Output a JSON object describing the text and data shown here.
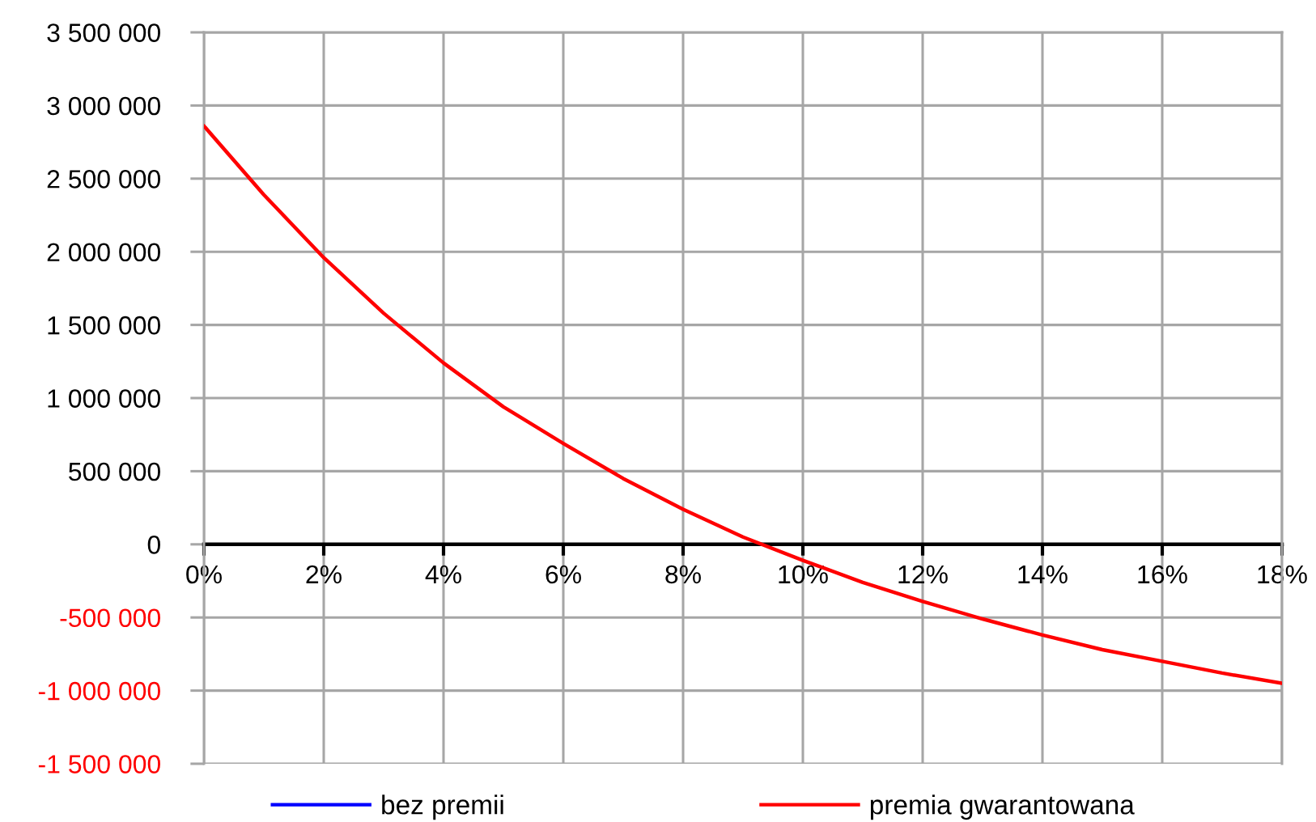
{
  "chart_data": {
    "type": "line",
    "x": [
      0,
      1,
      2,
      3,
      4,
      5,
      6,
      7,
      8,
      9,
      10,
      11,
      12,
      13,
      14,
      15,
      16,
      17,
      18
    ],
    "series": [
      {
        "name": "bez premii",
        "color": "#0000ff",
        "values": [
          null,
          null,
          null,
          null,
          null,
          null,
          null,
          null,
          null,
          null,
          null,
          null,
          null,
          null,
          null,
          null,
          null,
          null,
          null
        ]
      },
      {
        "name": "premia gwarantowana",
        "color": "#ff0000",
        "values": [
          2860000,
          2390000,
          1960000,
          1580000,
          1240000,
          940000,
          690000,
          450000,
          240000,
          50000,
          -110000,
          -260000,
          -390000,
          -510000,
          -620000,
          -720000,
          -800000,
          -880000,
          -950000
        ]
      }
    ],
    "xlim": [
      0,
      18
    ],
    "xticks": [
      {
        "value": 0,
        "label": "0%"
      },
      {
        "value": 2,
        "label": "2%"
      },
      {
        "value": 4,
        "label": "4%"
      },
      {
        "value": 6,
        "label": "6%"
      },
      {
        "value": 8,
        "label": "8%"
      },
      {
        "value": 10,
        "label": "10%"
      },
      {
        "value": 12,
        "label": "12%"
      },
      {
        "value": 14,
        "label": "14%"
      },
      {
        "value": 16,
        "label": "16%"
      },
      {
        "value": 18,
        "label": "18%"
      }
    ],
    "ylim": [
      -1500000,
      3500000
    ],
    "yticks": [
      {
        "value": -1500000,
        "label": "-1 500 000"
      },
      {
        "value": -1000000,
        "label": "-1 000 000"
      },
      {
        "value": -500000,
        "label": "-500 000"
      },
      0,
      {
        "value": 500000,
        "label": "500 000"
      },
      {
        "value": 1000000,
        "label": "1 000 000"
      },
      {
        "value": 1500000,
        "label": "1 500 000"
      },
      {
        "value": 2000000,
        "label": "2 000 000"
      },
      {
        "value": 2500000,
        "label": "2 500 000"
      },
      {
        "value": 3000000,
        "label": "3 000 000"
      },
      {
        "value": 3500000,
        "label": "3 500 000"
      }
    ],
    "grid": true,
    "legend": "bottom"
  }
}
